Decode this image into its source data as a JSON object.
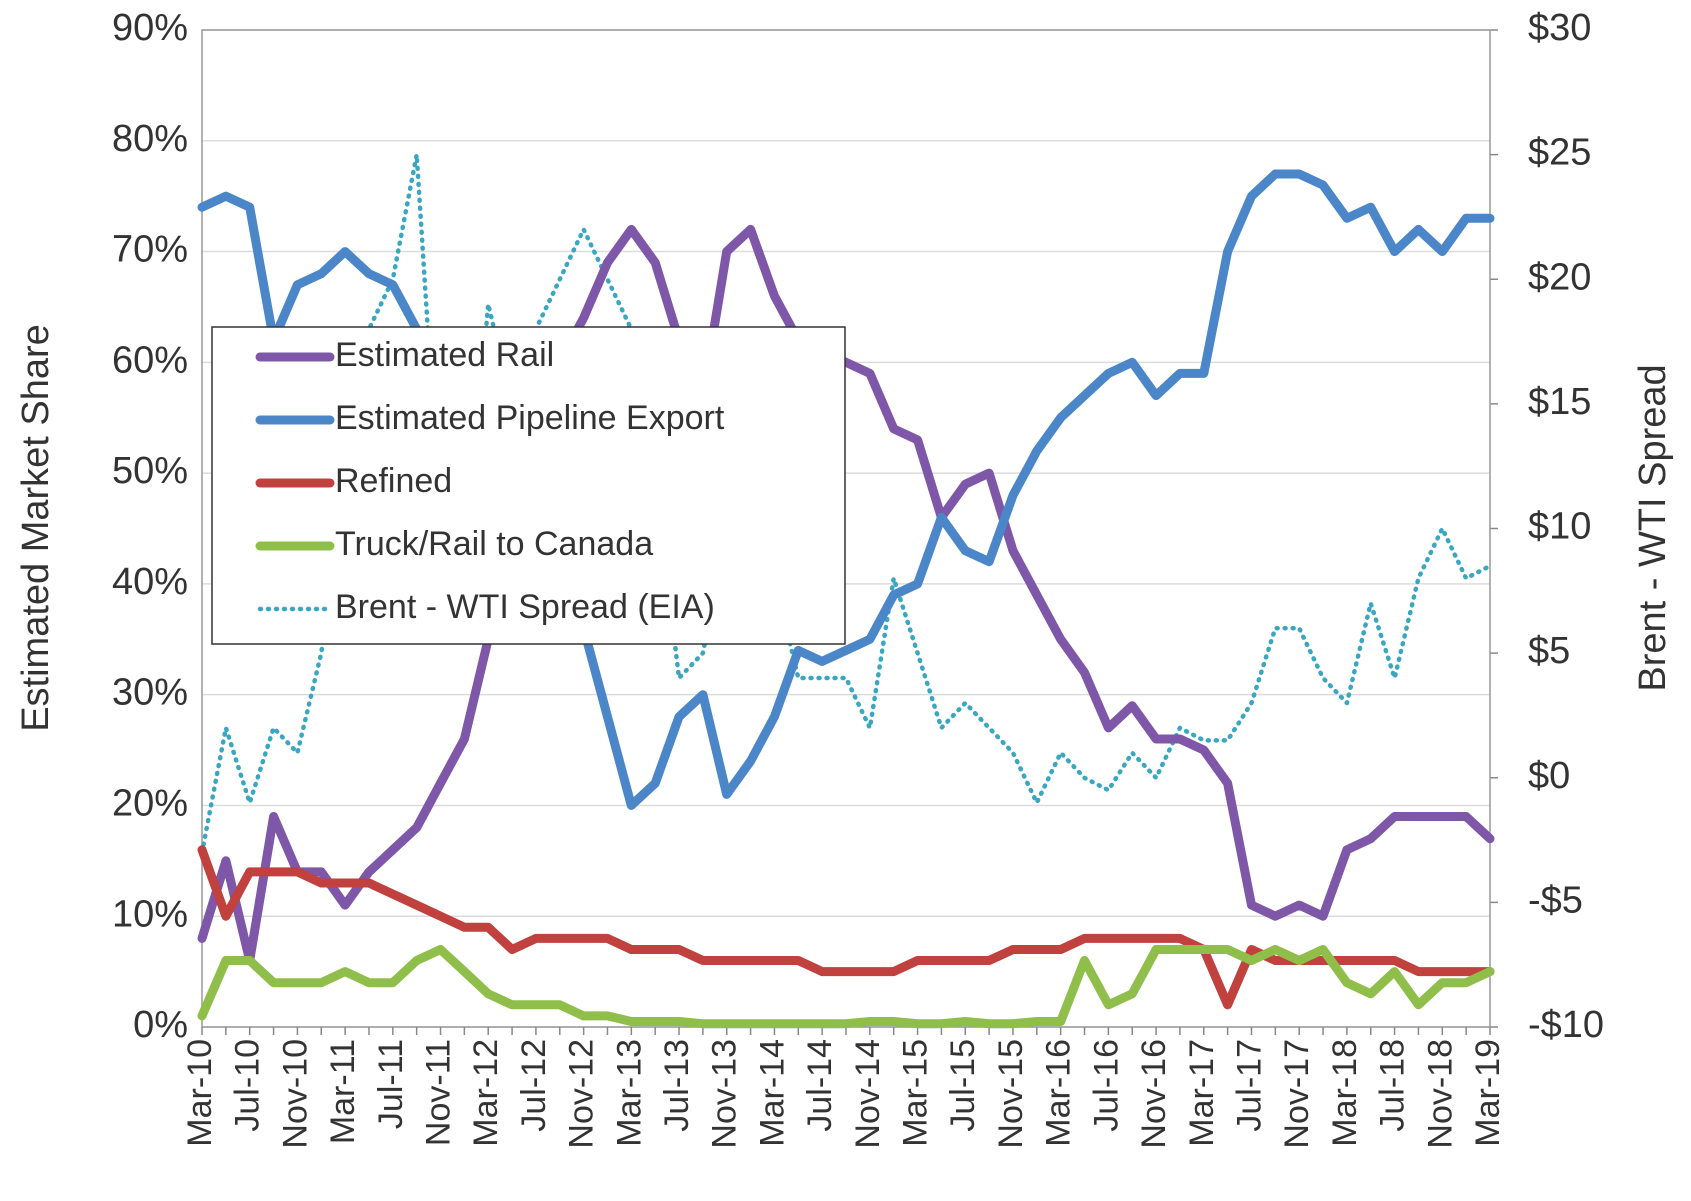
{
  "chart_data": {
    "type": "line",
    "ylabel": "Estimated Market Share",
    "y2label": "Brent - WTI Spread",
    "categories": [
      "Mar-10",
      null,
      "Jul-10",
      null,
      "Nov-10",
      null,
      "Mar-11",
      null,
      "Jul-11",
      null,
      "Nov-11",
      null,
      "Mar-12",
      null,
      "Jul-12",
      null,
      "Nov-12",
      null,
      "Mar-13",
      null,
      "Jul-13",
      null,
      "Nov-13",
      null,
      "Mar-14",
      null,
      "Jul-14",
      null,
      "Nov-14",
      null,
      "Mar-15",
      null,
      "Jul-15",
      null,
      "Nov-15",
      null,
      "Mar-16",
      null,
      "Jul-16",
      null,
      "Nov-16",
      null,
      "Mar-17",
      null,
      "Jul-17",
      null,
      "Nov-17",
      null,
      "Mar-18",
      null,
      "Jul-18",
      null,
      "Nov-18",
      null,
      "Mar-19"
    ],
    "series": [
      {
        "name": "Estimated Rail",
        "color": "#7e57a8",
        "values": [
          8,
          15,
          6,
          19,
          14,
          14,
          11,
          14,
          16,
          18,
          22,
          26,
          35,
          45,
          52,
          60,
          64,
          69,
          72,
          69,
          62,
          57,
          70,
          72,
          66,
          62,
          61,
          60,
          59,
          54,
          53,
          46,
          49,
          50,
          43,
          39,
          35,
          32,
          27,
          29,
          26,
          26,
          25,
          22,
          11,
          10,
          11,
          10,
          16,
          17,
          19,
          19,
          19,
          19,
          17
        ]
      },
      {
        "name": "Estimated Pipeline Export",
        "color": "#4a86c8",
        "values": [
          74,
          75,
          74,
          62,
          67,
          68,
          70,
          68,
          67,
          63,
          58,
          55,
          52,
          50,
          45,
          40,
          36,
          28,
          20,
          22,
          28,
          30,
          21,
          24,
          28,
          34,
          33,
          34,
          35,
          39,
          40,
          46,
          43,
          42,
          48,
          52,
          55,
          57,
          59,
          60,
          57,
          59,
          59,
          70,
          75,
          77,
          77,
          76,
          73,
          74,
          70,
          72,
          70,
          73,
          73
        ]
      },
      {
        "name": "Refined",
        "color": "#c0413e",
        "values": [
          16,
          10,
          14,
          14,
          14,
          13,
          13,
          13,
          12,
          11,
          10,
          9,
          9,
          7,
          8,
          8,
          8,
          8,
          7,
          7,
          7,
          6,
          6,
          6,
          6,
          6,
          5,
          5,
          5,
          5,
          6,
          6,
          6,
          6,
          7,
          7,
          7,
          8,
          8,
          8,
          8,
          8,
          7,
          2,
          7,
          6,
          6,
          6,
          6,
          6,
          6,
          5,
          5,
          5,
          5
        ]
      },
      {
        "name": "Truck/Rail to Canada",
        "color": "#8fbf4a",
        "values": [
          1,
          6,
          6,
          4,
          4,
          4,
          5,
          4,
          4,
          6,
          7,
          5,
          3,
          2,
          2,
          2,
          1,
          1,
          0.5,
          0.5,
          0.5,
          0.3,
          0.3,
          0.3,
          0.3,
          0.3,
          0.3,
          0.3,
          0.5,
          0.5,
          0.3,
          0.3,
          0.5,
          0.3,
          0.3,
          0.5,
          0.5,
          6,
          2,
          3,
          7,
          7,
          7,
          7,
          6,
          7,
          6,
          7,
          4,
          3,
          5,
          2,
          4,
          4,
          5
        ]
      },
      {
        "name": "Brent - WTI Spread (EIA)",
        "color": "#3aa7c0",
        "axis": "y2",
        "dashed": true,
        "values": [
          -3,
          2,
          -1,
          2,
          1,
          5,
          13,
          18,
          20,
          25,
          10,
          8,
          19,
          15,
          18,
          20,
          22,
          20,
          18,
          12,
          4,
          5,
          10,
          12,
          8,
          4,
          4,
          4,
          2,
          8,
          5,
          2,
          3,
          2,
          1,
          -1,
          1,
          0,
          -0.5,
          1,
          0,
          2,
          1.5,
          1.5,
          3,
          6,
          6,
          4,
          3,
          7,
          4,
          8,
          10,
          8,
          8.5
        ]
      }
    ],
    "ylim": [
      0,
      90
    ],
    "yticks": [
      {
        "value": 0,
        "label": "0%"
      },
      {
        "value": 10,
        "label": "10%"
      },
      {
        "value": 20,
        "label": "20%"
      },
      {
        "value": 30,
        "label": "30%"
      },
      {
        "value": 40,
        "label": "40%"
      },
      {
        "value": 50,
        "label": "50%"
      },
      {
        "value": 60,
        "label": "60%"
      },
      {
        "value": 70,
        "label": "70%"
      },
      {
        "value": 80,
        "label": "80%"
      },
      {
        "value": 90,
        "label": "90%"
      }
    ],
    "y2lim": [
      -10,
      30
    ],
    "y2ticks": [
      {
        "value": -10,
        "label": "-$10"
      },
      {
        "value": -5,
        "label": "-$5"
      },
      {
        "value": 0,
        "label": "$0"
      },
      {
        "value": 5,
        "label": "$5"
      },
      {
        "value": 10,
        "label": "$10"
      },
      {
        "value": 15,
        "label": "$15"
      },
      {
        "value": 20,
        "label": "$20"
      },
      {
        "value": 25,
        "label": "$25"
      },
      {
        "value": 30,
        "label": "$30"
      }
    ],
    "grid": true,
    "legend": "upper left"
  }
}
